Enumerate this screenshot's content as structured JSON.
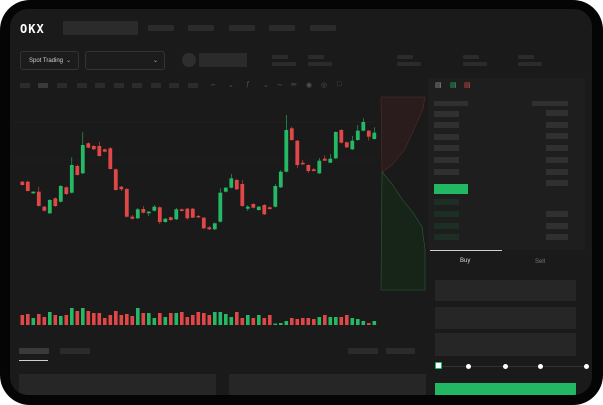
{
  "header": {
    "logo": "OKX"
  },
  "toolbar": {
    "market_select": "Spot Trading"
  },
  "colors": {
    "up": "#25b865",
    "down": "#e04848",
    "background": "#1a1a1a",
    "accent": "#22b863"
  },
  "icons": [
    "chevron-down-icon",
    "pencil-icon",
    "camera-icon",
    "settings-icon",
    "fullscreen-icon",
    "orderbook-both-icon",
    "orderbook-buy-icon",
    "orderbook-sell-icon"
  ],
  "trade_panel": {
    "tabs": [
      {
        "label": "Buy",
        "active": true
      },
      {
        "label": "Sell",
        "active": false
      }
    ],
    "slider_percent": 0
  },
  "chart_data": {
    "type": "candlestick",
    "candles": [
      [
        58.3,
        59,
        54.5,
        55
      ],
      [
        58.3,
        59.5,
        48.5,
        49
      ],
      [
        46.7,
        48.8,
        46,
        48.3
      ],
      [
        48.3,
        53.3,
        33.5,
        34
      ],
      [
        33.3,
        34,
        28.5,
        29.3
      ],
      [
        26.7,
        41,
        26,
        40
      ],
      [
        41.7,
        42.5,
        33,
        34
      ],
      [
        38.3,
        55,
        37.5,
        54
      ],
      [
        52.7,
        53.5,
        45,
        46
      ],
      [
        47.3,
        82.7,
        46.5,
        75
      ],
      [
        74,
        75.5,
        64.5,
        65
      ],
      [
        66.7,
        107.7,
        66,
        95
      ],
      [
        96.7,
        97.8,
        91.8,
        92.3
      ],
      [
        94,
        95,
        90,
        90.7
      ],
      [
        94,
        98.3,
        83.2,
        84
      ],
      [
        90.7,
        91.5,
        87.8,
        88.3
      ],
      [
        91.7,
        93,
        70.5,
        71
      ],
      [
        70.7,
        71.5,
        49.5,
        50
      ],
      [
        53.3,
        54,
        49,
        50.7
      ],
      [
        51,
        52,
        22.5,
        23.3
      ],
      [
        23.3,
        25,
        20.5,
        21.3
      ],
      [
        21.7,
        32,
        21,
        30.7
      ],
      [
        31,
        34,
        26.5,
        27.3
      ],
      [
        26.7,
        29,
        24,
        28.3
      ],
      [
        29.3,
        35,
        28.5,
        33.3
      ],
      [
        32.7,
        33.5,
        16,
        18
      ],
      [
        18,
        21.8,
        17.3,
        21.3
      ],
      [
        22.7,
        23.5,
        19.3,
        20
      ],
      [
        20.7,
        32,
        20,
        30.7
      ],
      [
        30.7,
        31.5,
        28.5,
        29
      ],
      [
        31.3,
        32,
        20.5,
        21.7
      ],
      [
        31.3,
        32,
        22,
        22.3
      ],
      [
        24,
        25,
        22,
        22.7
      ],
      [
        22.3,
        23,
        11,
        11.7
      ],
      [
        12.7,
        14,
        10,
        10.7
      ],
      [
        10.7,
        17.5,
        10,
        16.7
      ],
      [
        18.3,
        51.7,
        17.5,
        47.3
      ],
      [
        48.3,
        53,
        47.5,
        52.3
      ],
      [
        52.3,
        66,
        51.5,
        61.7
      ],
      [
        60,
        61,
        50,
        50.7
      ],
      [
        56,
        60,
        33.3,
        34
      ],
      [
        31.3,
        35,
        29,
        33.3
      ],
      [
        36,
        36.7,
        31.5,
        32.3
      ],
      [
        30,
        34,
        29.3,
        33.3
      ],
      [
        35,
        36,
        25,
        25.7
      ],
      [
        32.7,
        33.5,
        30.5,
        31
      ],
      [
        33.3,
        56,
        32.5,
        54
      ],
      [
        52.7,
        70,
        52,
        68.3
      ],
      [
        68.3,
        125,
        67.5,
        110
      ],
      [
        111.7,
        113.5,
        99.3,
        100
      ],
      [
        99.3,
        100,
        72,
        75
      ],
      [
        77.3,
        80,
        75,
        75.7
      ],
      [
        75,
        75.8,
        67,
        69
      ],
      [
        70.7,
        72,
        68.5,
        69
      ],
      [
        66.7,
        82,
        66,
        79.3
      ],
      [
        81.3,
        84.5,
        79,
        79.3
      ],
      [
        77.3,
        86,
        77,
        81.3
      ],
      [
        81.7,
        108.7,
        81,
        108
      ],
      [
        110,
        111,
        96.5,
        97.3
      ],
      [
        97.7,
        98.5,
        92,
        92.7
      ],
      [
        90.7,
        104,
        90,
        99.3
      ],
      [
        100,
        115,
        99.3,
        109.3
      ],
      [
        109.3,
        121.7,
        108.7,
        118
      ],
      [
        109.3,
        110,
        99.5,
        103.3
      ],
      [
        101,
        112.7,
        100.5,
        107.3
      ]
    ],
    "volumes": [
      10,
      11,
      7,
      11,
      8,
      13,
      10,
      9,
      10,
      17,
      14,
      17,
      14,
      12,
      12,
      7,
      10,
      14,
      10,
      11,
      9,
      17,
      12,
      12,
      7,
      12,
      8,
      12,
      12,
      13,
      8,
      10,
      13,
      12,
      10,
      13,
      13,
      11,
      8,
      13,
      7,
      10,
      7,
      10,
      7,
      10,
      1.5,
      2,
      4,
      7,
      6,
      7,
      7,
      6,
      8,
      10,
      8,
      8,
      8,
      10,
      7,
      6,
      4,
      2,
      4
    ]
  }
}
